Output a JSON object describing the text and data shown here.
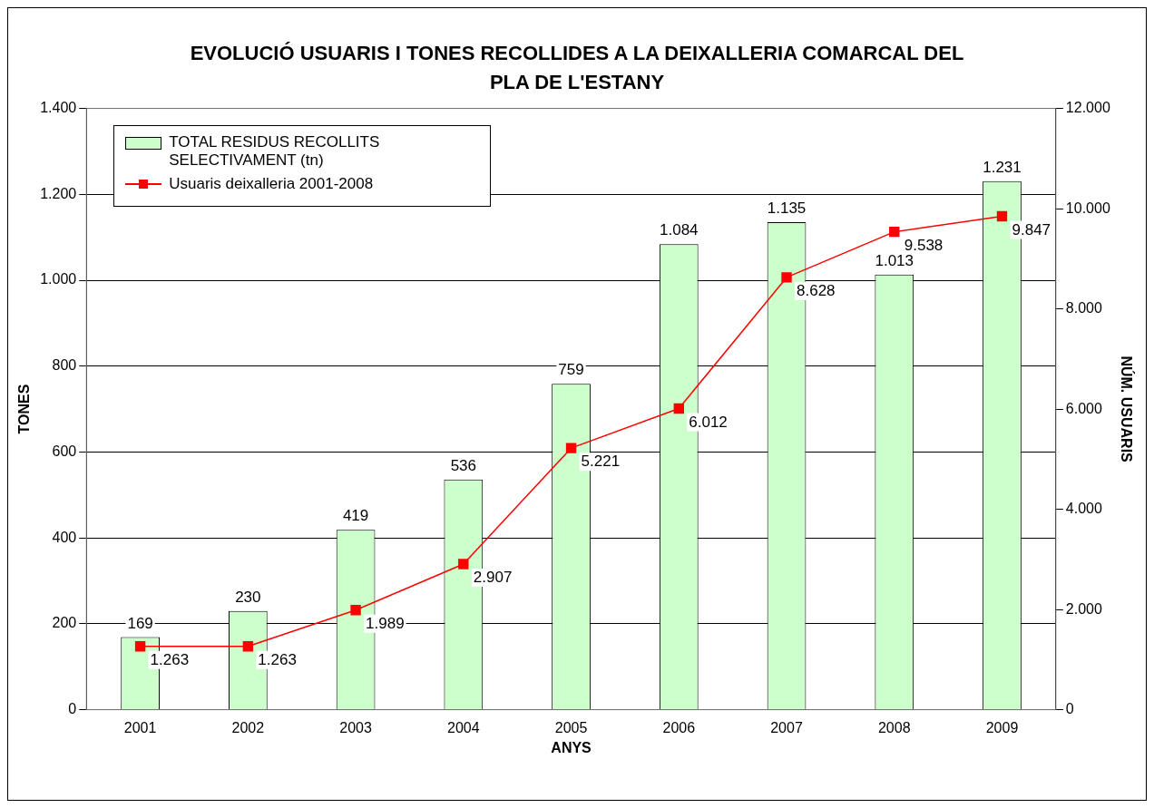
{
  "chart_data": {
    "type": "bar",
    "title": "EVOLUCIÓ USUARIS I TONES RECOLLIDES A LA DEIXALLERIA COMARCAL DEL PLA DE L'ESTANY",
    "xlabel": "ANYS",
    "ylabel": "TONES",
    "y2label": "NÚM. USUARIS",
    "categories": [
      "2001",
      "2002",
      "2003",
      "2004",
      "2005",
      "2006",
      "2007",
      "2008",
      "2009"
    ],
    "series": [
      {
        "name": "TOTAL RESIDUS RECOLLITS SELECTIVAMENT (tn)",
        "color": "#ccffcc",
        "values": [
          169,
          230,
          419,
          536,
          759,
          1084,
          1135,
          1013,
          1231
        ],
        "value_labels": [
          "169",
          "230",
          "419",
          "536",
          "759",
          "1.084",
          "1.135",
          "1.013",
          "1.231"
        ]
      },
      {
        "name": "Usuaris deixalleria 2001-2008",
        "type": "line",
        "axis": "y2",
        "color": "#ff0000",
        "values": [
          1263,
          1263,
          1989,
          2907,
          5221,
          6012,
          8628,
          9538,
          9847
        ],
        "value_labels": [
          "1.263",
          "1.263",
          "1.989",
          "2.907",
          "5.221",
          "6.012",
          "8.628",
          "9.538",
          "9.847"
        ]
      }
    ],
    "ylim": [
      0,
      1400
    ],
    "yticks": [
      0,
      200,
      400,
      600,
      800,
      {
        "value": 1000,
        "label": "1.000"
      },
      {
        "value": 1200,
        "label": "1.200"
      },
      {
        "value": 1400,
        "label": "1.400"
      }
    ],
    "y2lim": [
      0,
      12000
    ],
    "y2ticks": [
      0,
      {
        "value": 2000,
        "label": "2.000"
      },
      {
        "value": 4000,
        "label": "4.000"
      },
      {
        "value": 6000,
        "label": "6.000"
      },
      {
        "value": 8000,
        "label": "8.000"
      },
      {
        "value": 10000,
        "label": "10.000"
      },
      {
        "value": 12000,
        "label": "12.000"
      }
    ],
    "grid": "y",
    "legend": "top left",
    "marker": "square",
    "line_style": "solid"
  }
}
